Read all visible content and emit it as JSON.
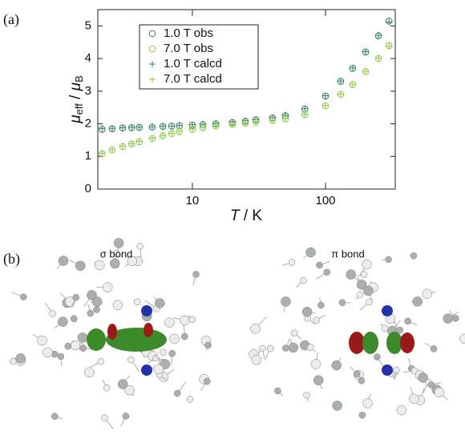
{
  "panel_labels": [
    "(a)",
    "(b)"
  ],
  "chart_data": {
    "type": "scatter",
    "xlabel_parts": [
      "T",
      " / K"
    ],
    "ylabel_parts": [
      "μ",
      "eff",
      " / ",
      "μ",
      "B"
    ],
    "log_x": true,
    "xlim": [
      1.95,
      334
    ],
    "xticks": [
      10,
      100
    ],
    "ylim": [
      0,
      5.5
    ],
    "yticks": [
      0,
      1,
      2,
      3,
      4,
      5
    ],
    "legend": "upper left",
    "x": [
      2.1,
      2.5,
      3,
      3.5,
      4,
      5,
      6,
      7,
      8,
      10,
      12,
      15,
      20,
      25,
      30,
      40,
      50,
      70,
      100,
      130,
      160,
      200,
      250,
      300
    ],
    "series": [
      {
        "name": "1.0 T obs",
        "color": "#2f7d5c",
        "marker": "circle",
        "values": [
          1.83,
          1.85,
          1.87,
          1.88,
          1.89,
          1.9,
          1.92,
          1.93,
          1.94,
          1.96,
          1.98,
          2.0,
          2.04,
          2.08,
          2.12,
          2.18,
          2.25,
          2.45,
          2.85,
          3.3,
          3.7,
          4.2,
          4.7,
          5.15
        ]
      },
      {
        "name": "7.0 T obs",
        "color": "#8cc63f",
        "marker": "circle",
        "values": [
          1.08,
          1.2,
          1.3,
          1.38,
          1.45,
          1.55,
          1.63,
          1.7,
          1.76,
          1.83,
          1.88,
          1.93,
          1.98,
          2.02,
          2.05,
          2.1,
          2.15,
          2.28,
          2.55,
          2.9,
          3.2,
          3.6,
          4.0,
          4.4
        ]
      },
      {
        "name": "1.0 T calcd",
        "color": "#2f7d5c",
        "marker": "plus",
        "values": [
          1.85,
          1.86,
          1.88,
          1.89,
          1.9,
          1.91,
          1.92,
          1.93,
          1.95,
          1.97,
          1.99,
          2.01,
          2.05,
          2.09,
          2.13,
          2.19,
          2.26,
          2.46,
          2.86,
          3.31,
          3.71,
          4.21,
          4.71,
          5.12
        ]
      },
      {
        "name": "7.0 T calcd",
        "color": "#8cc63f",
        "marker": "plus",
        "values": [
          1.1,
          1.21,
          1.31,
          1.39,
          1.46,
          1.56,
          1.64,
          1.71,
          1.77,
          1.84,
          1.89,
          1.94,
          1.99,
          2.03,
          2.06,
          2.11,
          2.16,
          2.29,
          2.56,
          2.91,
          3.21,
          3.61,
          4.01,
          4.38
        ]
      }
    ]
  },
  "orbitals": [
    {
      "label": "σ bond"
    },
    {
      "label": "π bond"
    }
  ]
}
